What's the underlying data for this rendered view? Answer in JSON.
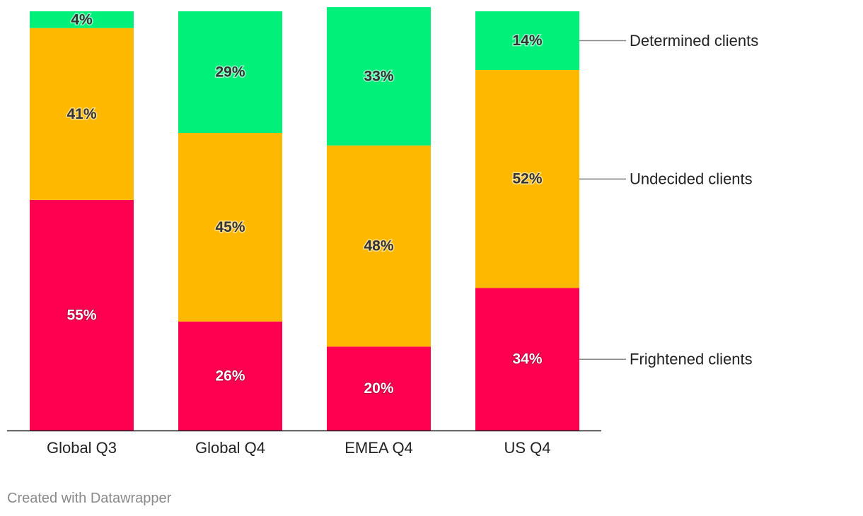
{
  "chart_data": {
    "type": "bar",
    "stacked": true,
    "orientation": "vertical",
    "title": "",
    "xlabel": "",
    "ylabel": "",
    "ylim": [
      0,
      100
    ],
    "grid": false,
    "categories": [
      "Global Q3",
      "Global Q4",
      "EMEA Q4",
      "US Q4"
    ],
    "series": [
      {
        "name": "Frightened clients",
        "color": "#ff0050",
        "label_style": "light",
        "values": [
          55,
          26,
          20,
          34
        ],
        "labels": [
          "55%",
          "26%",
          "20%",
          "34%"
        ]
      },
      {
        "name": "Undecided clients",
        "color": "#ffb800",
        "label_style": "dark",
        "values": [
          41,
          45,
          48,
          52
        ],
        "labels": [
          "41%",
          "45%",
          "48%",
          "52%"
        ]
      },
      {
        "name": "Determined clients",
        "color": "#00f07a",
        "label_style": "dark",
        "values": [
          4,
          29,
          33,
          14
        ],
        "labels": [
          "4%",
          "29%",
          "33%",
          "14%"
        ]
      }
    ],
    "legend_placement": "right, aligned with last bar segments"
  },
  "footer": {
    "credit": "Created with Datawrapper"
  },
  "colors": {
    "axis": "#222222",
    "leader_line": "#888888",
    "footer_text": "#8a8a8a"
  }
}
